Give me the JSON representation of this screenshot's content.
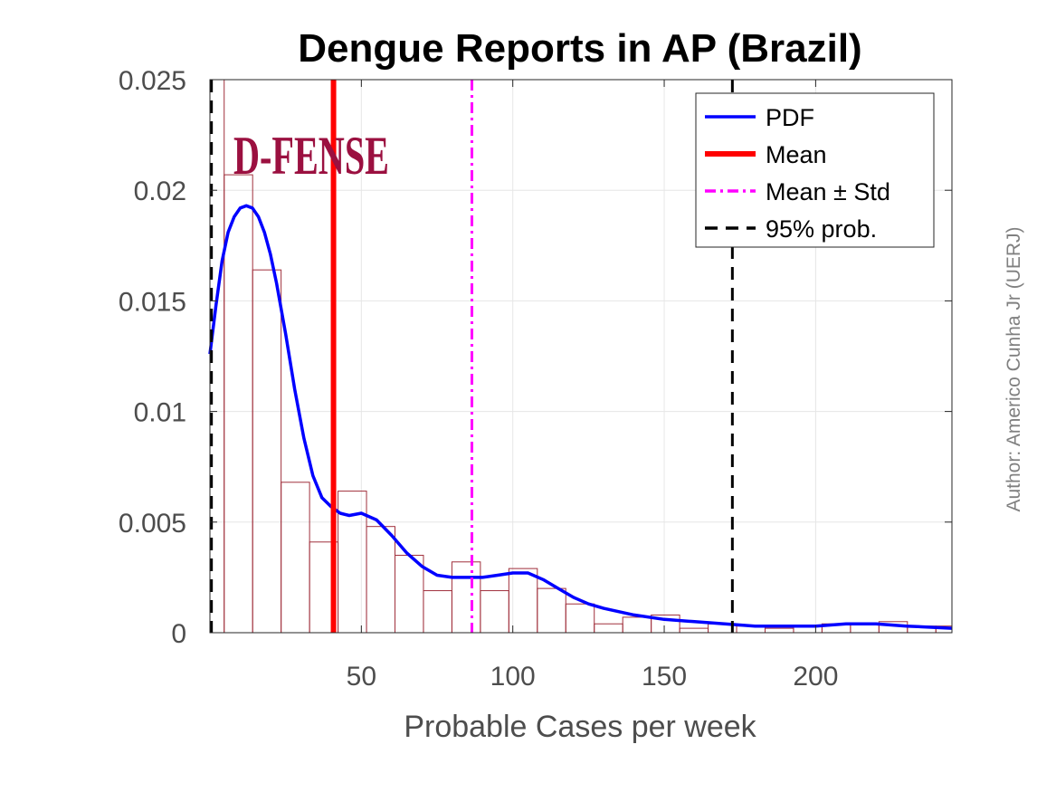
{
  "chart_data": {
    "type": "bar",
    "title": "Dengue Reports in AP (Brazil)",
    "xlabel": "Probable Cases per week",
    "ylabel": "",
    "xlim": [
      0,
      245
    ],
    "ylim": [
      0,
      0.025
    ],
    "xticks": [
      50,
      100,
      150,
      200
    ],
    "yticks": [
      0,
      0.005,
      0.01,
      0.015,
      0.02,
      0.025
    ],
    "ytick_labels": [
      "0",
      "0.005",
      "0.01",
      "0.015",
      "0.02",
      "0.025"
    ],
    "grid": true,
    "legend_position": "top-right",
    "histogram": {
      "bin_edges": [
        0,
        4.7,
        14.1,
        23.5,
        32.9,
        42.3,
        51.7,
        61.1,
        70.5,
        79.9,
        89.3,
        98.7,
        108.1,
        117.5,
        126.9,
        136.3,
        145.7,
        155.1,
        164.5,
        173.9,
        183.3,
        192.7,
        202.1,
        211.5,
        220.9,
        230.3,
        239.7,
        245
      ],
      "values": [
        0.0253,
        0.0207,
        0.0164,
        0.0068,
        0.0041,
        0.0064,
        0.0048,
        0.0035,
        0.0019,
        0.0032,
        0.0019,
        0.0029,
        0.002,
        0.0013,
        0.0004,
        0.0007,
        0.0008,
        0.0002,
        0.0004,
        0.0003,
        0.0002,
        0.0003,
        0.0004,
        0.0004,
        0.0005,
        0.0003,
        0.0003
      ],
      "edge_color": "#a0303c"
    },
    "series": [
      {
        "name": "PDF",
        "type": "line",
        "color": "#0000ff",
        "x": [
          0,
          2,
          4,
          6,
          8,
          10,
          12,
          14,
          16,
          18,
          20,
          22,
          25,
          28,
          31,
          34,
          37,
          40,
          43,
          46,
          50,
          55,
          60,
          65,
          70,
          75,
          80,
          85,
          90,
          95,
          100,
          105,
          110,
          115,
          120,
          125,
          130,
          140,
          150,
          160,
          170,
          180,
          190,
          200,
          210,
          220,
          230,
          245
        ],
        "y": [
          0.0126,
          0.0148,
          0.0168,
          0.0181,
          0.0188,
          0.0192,
          0.0193,
          0.0192,
          0.0188,
          0.0181,
          0.0171,
          0.0158,
          0.0135,
          0.011,
          0.0088,
          0.0071,
          0.0061,
          0.0057,
          0.0054,
          0.0053,
          0.0054,
          0.0051,
          0.0044,
          0.0036,
          0.003,
          0.0026,
          0.0025,
          0.0025,
          0.0025,
          0.0026,
          0.0027,
          0.0027,
          0.0024,
          0.002,
          0.0016,
          0.0013,
          0.0011,
          0.0008,
          0.0006,
          0.0005,
          0.0004,
          0.0003,
          0.0003,
          0.0003,
          0.0004,
          0.0004,
          0.0003,
          0.0002
        ]
      },
      {
        "name": "Mean",
        "type": "vline",
        "x": 40.8,
        "color": "#ff0000",
        "style": "solid"
      },
      {
        "name": "Mean ± Std",
        "type": "vline",
        "x": 86.5,
        "color": "#ff00ff",
        "style": "dashdot"
      },
      {
        "name": "95% prob.",
        "type": "vline",
        "x": [
          0.5,
          172.5
        ],
        "color": "#000000",
        "style": "dashed"
      }
    ],
    "legend": [
      "PDF",
      "Mean",
      "Mean ± Std",
      "95% prob."
    ],
    "logo_text": "D-FENSE",
    "author": "Author: Americo Cunha Jr (UERJ)"
  }
}
